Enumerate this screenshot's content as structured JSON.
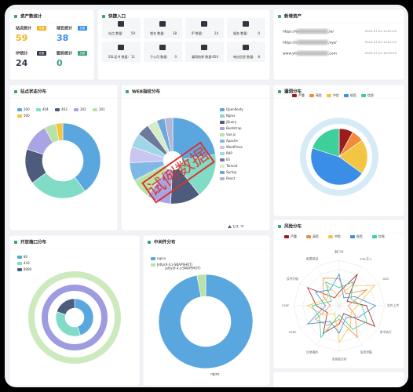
{
  "stats": {
    "title": "资产数统计",
    "items": [
      {
        "label": "站点统计",
        "badge": "总数",
        "value": 59,
        "color": "#f2b31c"
      },
      {
        "label": "域名统计",
        "badge": "总数",
        "value": 38,
        "color": "#3a8ee6"
      },
      {
        "label": "IP统计",
        "badge": "总数",
        "value": 24,
        "color": "#333a4d"
      },
      {
        "label": "服务统计",
        "badge": "总数",
        "value": 0,
        "color": "#3ba272"
      }
    ]
  },
  "quick": {
    "title": "快捷入口",
    "items": [
      {
        "label": "站点 数量:",
        "value": 59
      },
      {
        "label": "域名 数量:",
        "value": 38
      },
      {
        "label": "IP 数量:",
        "value": 24
      },
      {
        "label": "服务 数量:",
        "value": 0
      },
      {
        "label": "SSL证书 数量:",
        "value": 11
      },
      {
        "label": "子公司 数量:",
        "value": 0
      },
      {
        "label": "漏洞结果 数量:",
        "value": 650
      },
      {
        "label": "响应信息 数量:",
        "value": 8
      }
    ]
  },
  "recent": {
    "title": "新增资产",
    "rows": [
      {
        "prefix": "https://w",
        "suffix": ".io/",
        "time": "2024-07-04 14:01:04"
      },
      {
        "prefix": "https://s",
        "suffix": ".xyz/",
        "time": "2024-07-04 14:01:04"
      },
      {
        "prefix": "www.yht",
        "suffix": ".com",
        "time": "2024-07-04 16:05:20"
      }
    ]
  },
  "watermark": "试例数据",
  "pager": "1/3",
  "chart_data": [
    {
      "type": "pie",
      "title": "站点状态分布",
      "categories": [
        "200",
        "404",
        "403",
        "302",
        "301",
        "500"
      ],
      "values": [
        40,
        25,
        15,
        12,
        5,
        3
      ],
      "colors": [
        "#5aa7e0",
        "#80dcc6",
        "#4d5b7c",
        "#a9a4e3",
        "#b9e3a6",
        "#f4c542"
      ]
    },
    {
      "type": "pie",
      "title": "WEB指纹分布",
      "categories": [
        "OpenResty",
        "Nginx",
        "jQuery",
        "Bootstrap",
        "Vue.js",
        "Apache",
        "WordPress",
        "PHP",
        "IIS",
        "Tomcat",
        "Spring",
        "React"
      ],
      "values": [
        30,
        22,
        15,
        12,
        10,
        9,
        8,
        7,
        6,
        5,
        4,
        4
      ],
      "colors": [
        "#5aa7e0",
        "#80dcc6",
        "#4d5b7c",
        "#a9a4e3",
        "#b9e3a6",
        "#7fb8e6",
        "#c9c6ef",
        "#9ed7e8",
        "#6c7a9c",
        "#d5ecc6",
        "#6fa8dc",
        "#b4b4d8"
      ]
    },
    {
      "type": "pie",
      "title": "漏洞分布",
      "categories": [
        "严重",
        "高危",
        "中危",
        "低危",
        "信息"
      ],
      "values": [
        8,
        7,
        20,
        45,
        20
      ],
      "colors": [
        "#9b1c1c",
        "#f08c3a",
        "#f4c542",
        "#3a8ee6",
        "#3ecf9a"
      ]
    },
    {
      "type": "pie",
      "title": "开放端口分布",
      "categories": [
        "80",
        "443",
        "8080"
      ],
      "values": [
        45,
        35,
        20
      ],
      "colors": [
        "#5aa7e0",
        "#80dcc6",
        "#4d5b7c"
      ]
    },
    {
      "type": "pie",
      "title": "中间件分布",
      "categories": [
        "nginx",
        "Jetty(9.4.z-SNAPSHOT)"
      ],
      "values": [
        97,
        3
      ],
      "colors": [
        "#5aa7e0",
        "#b9e3a6"
      ]
    },
    {
      "type": "radar",
      "title": "风险分布",
      "ylim": [
        0,
        10
      ],
      "indicators": [
        "弱口令",
        "SQL注入",
        "XSS",
        "文件上传",
        "命令执行",
        "信息泄露",
        "未授权访问",
        "目录遍历",
        "SSRF",
        "CSRF",
        "反序列化",
        "配置错误"
      ],
      "series": [
        {
          "name": "严重",
          "color": "#9b1c1c",
          "values": [
            3,
            8,
            2,
            6,
            9,
            2,
            4,
            7,
            3,
            5,
            8,
            2
          ]
        },
        {
          "name": "高危",
          "color": "#f08c3a",
          "values": [
            6,
            3,
            7,
            2,
            4,
            8,
            3,
            5,
            6,
            2,
            4,
            7
          ]
        },
        {
          "name": "中危",
          "color": "#f4c542",
          "values": [
            2,
            5,
            9,
            4,
            3,
            5,
            8,
            2,
            4,
            7,
            3,
            5
          ]
        },
        {
          "name": "低危",
          "color": "#3a8ee6",
          "values": [
            7,
            2,
            4,
            8,
            5,
            3,
            6,
            4,
            8,
            3,
            6,
            4
          ]
        },
        {
          "name": "信息",
          "color": "#3ecf9a",
          "values": [
            4,
            6,
            3,
            5,
            7,
            6,
            2,
            8,
            5,
            6,
            2,
            6
          ]
        }
      ]
    }
  ]
}
